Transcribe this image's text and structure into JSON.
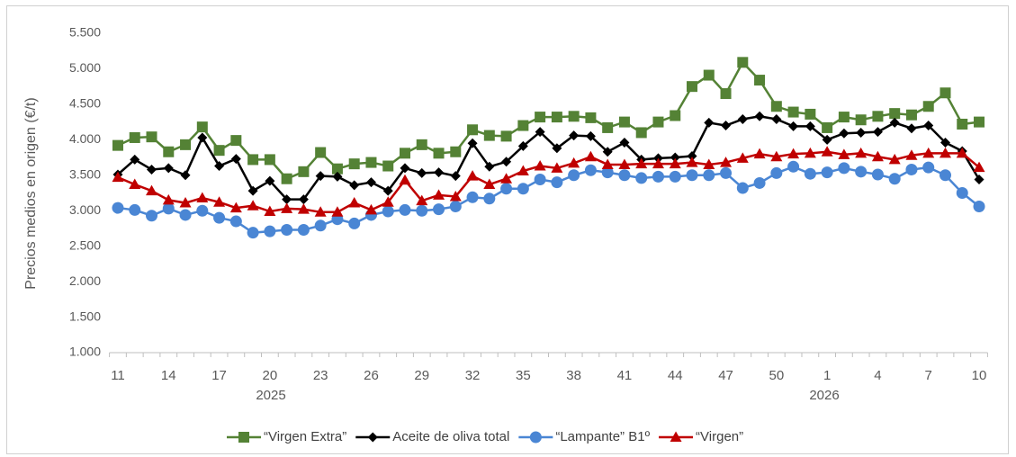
{
  "chart_data": {
    "type": "line",
    "y_label": "Precios medios  en origen (€/t)",
    "categories": [
      "11",
      null,
      null,
      "14",
      null,
      null,
      "17",
      null,
      null,
      "20",
      null,
      null,
      "23",
      null,
      null,
      "26",
      null,
      null,
      "29",
      null,
      null,
      "32",
      null,
      null,
      "35",
      null,
      null,
      "38",
      null,
      null,
      "41",
      null,
      null,
      "44",
      null,
      null,
      "47",
      null,
      null,
      "50",
      null,
      null,
      "1",
      null,
      null,
      "4",
      null,
      null,
      "7",
      null,
      null,
      "10"
    ],
    "year_labels": [
      "2025",
      "2026"
    ],
    "ylim": [
      1000,
      5500
    ],
    "yticks": [
      {
        "value": 1000,
        "label": "1.000"
      },
      {
        "value": 1500,
        "label": "1.500"
      },
      {
        "value": 2000,
        "label": "2.000"
      },
      {
        "value": 2500,
        "label": "2.500"
      },
      {
        "value": 3000,
        "label": "3.000"
      },
      {
        "value": 3500,
        "label": "3.500"
      },
      {
        "value": 4000,
        "label": "4.000"
      },
      {
        "value": 4500,
        "label": "4.500"
      },
      {
        "value": 5000,
        "label": "5.000"
      },
      {
        "value": 5500,
        "label": "5.500"
      }
    ],
    "series": [
      {
        "name": "“Virgen Extra”",
        "color": "#548235",
        "marker": "square",
        "values": [
          3920,
          4030,
          4040,
          3830,
          3930,
          4180,
          3850,
          3990,
          3720,
          3720,
          3450,
          3550,
          3820,
          3590,
          3660,
          3680,
          3630,
          3810,
          3930,
          3810,
          3830,
          4140,
          4060,
          4050,
          4200,
          4320,
          4320,
          4330,
          4310,
          4170,
          4250,
          4100,
          4250,
          4340,
          4750,
          4910,
          4650,
          5090,
          4840,
          4470,
          4390,
          4360,
          4170,
          4320,
          4280,
          4330,
          4370,
          4350,
          4470,
          4660,
          4220,
          4250
        ]
      },
      {
        "name": "Aceite de oliva total",
        "color": "#000000",
        "marker": "diamond",
        "values": [
          3510,
          3720,
          3580,
          3600,
          3500,
          4030,
          3630,
          3730,
          3280,
          3420,
          3160,
          3160,
          3490,
          3480,
          3360,
          3400,
          3280,
          3600,
          3530,
          3540,
          3490,
          3950,
          3620,
          3690,
          3910,
          4110,
          3880,
          4060,
          4050,
          3830,
          3960,
          3720,
          3740,
          3750,
          3770,
          4240,
          4200,
          4290,
          4330,
          4290,
          4190,
          4190,
          4000,
          4090,
          4100,
          4110,
          4240,
          4160,
          4200,
          3960,
          3840,
          3440
        ]
      },
      {
        "name": "“Lampante” B1º",
        "color": "#4a86d4",
        "marker": "circle",
        "values": [
          3040,
          3010,
          2930,
          3030,
          2940,
          3000,
          2900,
          2850,
          2690,
          2710,
          2730,
          2730,
          2790,
          2880,
          2820,
          2940,
          2990,
          3010,
          3000,
          3020,
          3060,
          3190,
          3170,
          3310,
          3310,
          3440,
          3400,
          3500,
          3570,
          3540,
          3500,
          3460,
          3480,
          3480,
          3500,
          3500,
          3530,
          3320,
          3390,
          3530,
          3620,
          3520,
          3540,
          3600,
          3550,
          3510,
          3450,
          3580,
          3610,
          3500,
          3250,
          3060
        ]
      },
      {
        "name": "“Virgen”",
        "color": "#c00000",
        "marker": "triangle",
        "values": [
          3470,
          3370,
          3280,
          3150,
          3110,
          3180,
          3120,
          3040,
          3070,
          2990,
          3030,
          3020,
          2980,
          2980,
          3110,
          3010,
          3120,
          3430,
          3140,
          3220,
          3200,
          3490,
          3370,
          3450,
          3560,
          3630,
          3600,
          3670,
          3760,
          3650,
          3650,
          3660,
          3660,
          3660,
          3680,
          3650,
          3680,
          3740,
          3800,
          3760,
          3800,
          3810,
          3830,
          3790,
          3810,
          3760,
          3720,
          3780,
          3810,
          3810,
          3810,
          3610
        ]
      }
    ]
  }
}
